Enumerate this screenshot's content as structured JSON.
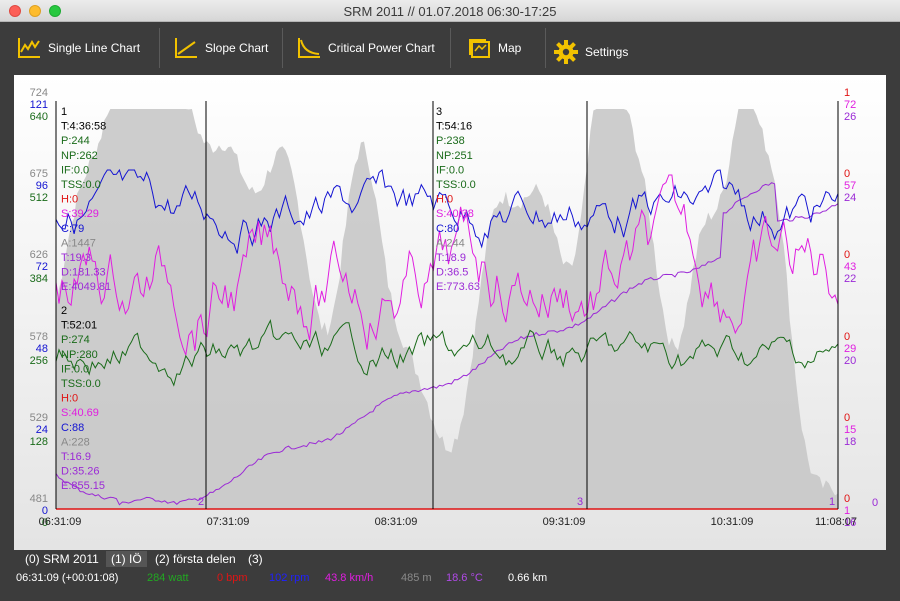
{
  "window": {
    "title": "SRM 2011 // 01.07.2018 06:30-17:25"
  },
  "toolbar": {
    "single_line": "Single Line Chart",
    "slope": "Slope Chart",
    "critical_power": "Critical Power Chart",
    "map": "Map",
    "settings": "Settings"
  },
  "colors": {
    "power": "#1a6b1a",
    "cadence": "#1414d2",
    "speed": "#e01ee0",
    "alt": "#c8c8c8",
    "temp": "#9b2ad6",
    "hr": "#e01414"
  },
  "left_axes": {
    "alt": [
      "724",
      "675",
      "626",
      "578",
      "529",
      "481"
    ],
    "cad": [
      "121",
      "96",
      "72",
      "48",
      "24",
      "0"
    ],
    "pow": [
      "640",
      "512",
      "384",
      "256",
      "128",
      "0"
    ]
  },
  "right_axes": {
    "hr": [
      "1",
      "0",
      "0",
      "0",
      "0",
      "0"
    ],
    "spd": [
      "72",
      "57",
      "43",
      "29",
      "15",
      "1"
    ],
    "tmp": [
      "26",
      "24",
      "22",
      "20",
      "18",
      "16"
    ],
    "extra": "0"
  },
  "x_ticks": [
    "06:31:09",
    "07:31:09",
    "08:31:09",
    "09:31:09",
    "10:31:09",
    "11:08:07"
  ],
  "markers": [
    "2",
    "3",
    "1"
  ],
  "intervals": [
    {
      "name": "1",
      "T": "T:4:36:58",
      "P": "P:244",
      "NP": "NP:262",
      "IF": "IF:0.0",
      "TSS": "TSS:0.0",
      "H": "H:0",
      "S": "S:39.29",
      "C": "C:79",
      "A": "A:1447",
      "T2": "T:19.3",
      "D": "D:181.33",
      "E": "E:4049.81"
    },
    {
      "name": "2",
      "T": "T:52:01",
      "P": "P:274",
      "NP": "NP:280",
      "IF": "IF:0.0",
      "TSS": "TSS:0.0",
      "H": "H:0",
      "S": "S:40.69",
      "C": "C:88",
      "A": "A:228",
      "T2": "T:16.9",
      "D": "D:35.26",
      "E": "E:855.15"
    },
    {
      "name": "3",
      "T": "T:54:16",
      "P": "P:238",
      "NP": "NP:251",
      "IF": "IF:0.0",
      "TSS": "TSS:0.0",
      "H": "H:0",
      "S": "S:40.38",
      "C": "C:80",
      "A": "A:244",
      "T2": "T:18.9",
      "D": "D:36.5",
      "E": "E:773.63"
    }
  ],
  "tabs": [
    "(0) SRM 2011",
    "(1) IÖ",
    "(2) första delen",
    "(3)"
  ],
  "status": {
    "time": "06:31:09 (+00:01:08)",
    "power": "284 watt",
    "hr": "0 bpm",
    "cadence": "102 rpm",
    "speed": "43.8 km/h",
    "alt": "485 m",
    "temp": "18.6 °C",
    "dist": "0.66 km"
  }
}
